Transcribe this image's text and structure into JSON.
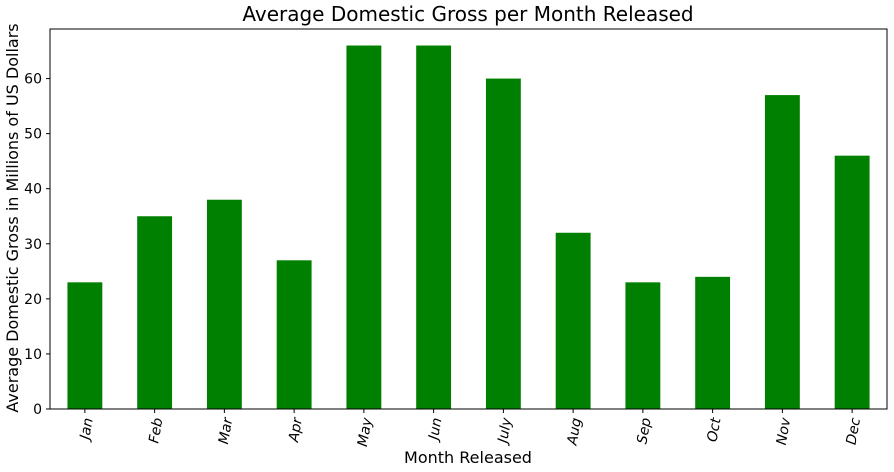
{
  "chart_data": {
    "type": "bar",
    "title": "Average Domestic Gross per Month Released",
    "xlabel": "Month Released",
    "ylabel": "Average Domestic Gross in Millions of US Dollars",
    "categories": [
      "Jan",
      "Feb",
      "Mar",
      "Apr",
      "May",
      "Jun",
      "July",
      "Aug",
      "Sep",
      "Oct",
      "Nov",
      "Dec"
    ],
    "values": [
      23,
      35,
      38,
      27,
      66,
      66,
      60,
      32,
      23,
      24,
      57,
      46
    ],
    "ylim": [
      0,
      69
    ],
    "yticks": [
      0,
      10,
      20,
      30,
      40,
      50,
      60
    ],
    "bar_color": "#008000",
    "grid": false,
    "legend": "none"
  }
}
